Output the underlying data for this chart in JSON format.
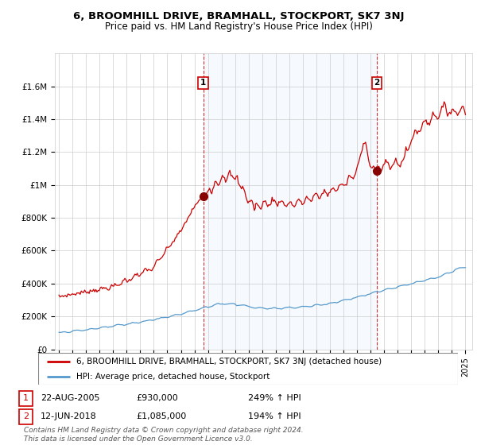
{
  "title": "6, BROOMHILL DRIVE, BRAMHALL, STOCKPORT, SK7 3NJ",
  "subtitle": "Price paid vs. HM Land Registry's House Price Index (HPI)",
  "legend_label_red": "6, BROOMHILL DRIVE, BRAMHALL, STOCKPORT, SK7 3NJ (detached house)",
  "legend_label_blue": "HPI: Average price, detached house, Stockport",
  "footer": "Contains HM Land Registry data © Crown copyright and database right 2024.\nThis data is licensed under the Open Government Licence v3.0.",
  "annotation1_date": "22-AUG-2005",
  "annotation1_price": "£930,000",
  "annotation1_hpi": "249% ↑ HPI",
  "annotation1_year": 2005.65,
  "annotation1_value": 930000,
  "annotation2_date": "12-JUN-2018",
  "annotation2_price": "£1,085,000",
  "annotation2_hpi": "194% ↑ HPI",
  "annotation2_year": 2018.45,
  "annotation2_value": 1085000,
  "ylim": [
    0,
    1800000
  ],
  "xlim_start": 1994.7,
  "xlim_end": 2025.5,
  "red_color": "#cc0000",
  "blue_color": "#5599cc",
  "shade_color": "#ddeeff",
  "marker_box_color": "#cc0000",
  "background_color": "#ffffff",
  "grid_color": "#cccccc",
  "yticks": [
    0,
    200000,
    400000,
    600000,
    800000,
    1000000,
    1200000,
    1400000,
    1600000
  ],
  "ytick_labels": [
    "£0",
    "£200K",
    "£400K",
    "£600K",
    "£800K",
    "£1M",
    "£1.2M",
    "£1.4M",
    "£1.6M"
  ],
  "xticks": [
    1995,
    1996,
    1997,
    1998,
    1999,
    2000,
    2001,
    2002,
    2003,
    2004,
    2005,
    2006,
    2007,
    2008,
    2009,
    2010,
    2011,
    2012,
    2013,
    2014,
    2015,
    2016,
    2017,
    2018,
    2019,
    2020,
    2021,
    2022,
    2023,
    2024,
    2025
  ]
}
